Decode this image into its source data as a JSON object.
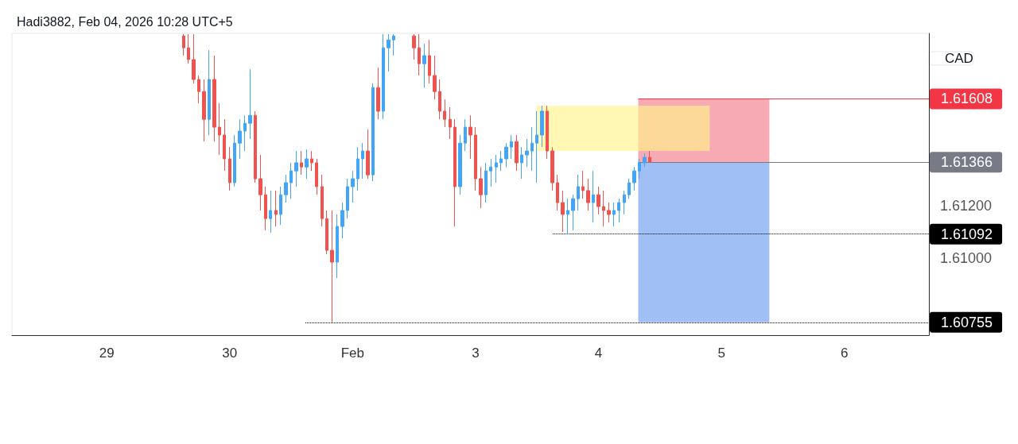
{
  "chart_data": {
    "type": "candlestick",
    "title": "Hadi3882, Feb 04, 2026 10:28 UTC+5",
    "ylabel": "CAD",
    "categories": [
      null,
      null,
      null,
      null,
      null,
      null,
      null,
      null,
      null,
      null,
      null,
      null,
      null,
      null,
      null,
      null,
      null,
      null,
      "29",
      null,
      null,
      null,
      null,
      null,
      null,
      null,
      null,
      null,
      null,
      null,
      null,
      null,
      null,
      null,
      null,
      null,
      null,
      null,
      null,
      null,
      null,
      null,
      "30",
      null,
      null,
      null,
      null,
      null,
      null,
      null,
      null,
      null,
      null,
      null,
      null,
      null,
      null,
      null,
      null,
      null,
      null,
      null,
      null,
      null,
      null,
      null,
      "Feb",
      null,
      null,
      null,
      null,
      null,
      null,
      null,
      null,
      null,
      null,
      null,
      null,
      null,
      null,
      null,
      null,
      null,
      null,
      null,
      null,
      null,
      null,
      null,
      "3",
      null,
      null,
      null,
      null,
      null,
      null,
      null,
      null,
      null,
      null,
      null,
      null,
      null,
      null,
      null,
      null,
      null,
      null,
      null,
      null,
      null,
      null,
      null,
      "4",
      null,
      null,
      null,
      null,
      null,
      null,
      null,
      null,
      null,
      null,
      null,
      null,
      null,
      null,
      null,
      null,
      null,
      null,
      null,
      null,
      null,
      null,
      null,
      "5",
      null,
      null,
      null,
      null,
      null,
      null,
      null,
      null,
      null,
      null,
      null,
      null,
      null,
      null,
      null,
      null,
      null,
      null,
      null,
      null,
      null,
      null,
      null,
      "6",
      null,
      null,
      null,
      null,
      null,
      null,
      null,
      null,
      null,
      null,
      null,
      null,
      null,
      null,
      null,
      null
    ],
    "ohlc": [
      null,
      null,
      null,
      null,
      null,
      null,
      null,
      null,
      null,
      null,
      null,
      null,
      null,
      null,
      null,
      null,
      null,
      null,
      null,
      null,
      null,
      null,
      null,
      null,
      null,
      null,
      null,
      null,
      null,
      null,
      null,
      null,
      null,
      [
        1.61848,
        1.61855,
        1.61773,
        1.61803
      ],
      [
        1.61803,
        1.61855,
        1.61742,
        1.61758
      ],
      [
        1.61758,
        1.61855,
        1.61667,
        1.61682
      ],
      [
        1.61682,
        1.61697,
        1.61591,
        1.61636
      ],
      [
        1.61636,
        1.61682,
        1.61445,
        1.6153
      ],
      [
        1.6153,
        1.61794,
        1.6147,
        1.61682
      ],
      [
        1.61682,
        1.61773,
        1.61445,
        1.615
      ],
      [
        1.615,
        1.61591,
        1.61394,
        1.6147
      ],
      [
        1.6147,
        1.6153,
        1.61333,
        1.61379
      ],
      [
        1.61379,
        1.61424,
        1.61258,
        1.61288
      ],
      [
        1.61288,
        1.6147,
        1.61273,
        1.61439
      ],
      [
        1.61439,
        1.6153,
        1.61379,
        1.61485
      ],
      [
        1.61485,
        1.61545,
        1.61409,
        1.61515
      ],
      [
        1.61515,
        1.61721,
        1.61455,
        1.61545
      ],
      [
        1.61545,
        1.61561,
        1.61288,
        1.61303
      ],
      [
        1.61303,
        1.61394,
        1.61182,
        1.61242
      ],
      [
        1.61242,
        1.61273,
        1.61106,
        1.61151
      ],
      [
        1.61151,
        1.61258,
        1.61097,
        1.61182
      ],
      [
        1.61182,
        1.61258,
        1.61121,
        1.61167
      ],
      [
        1.61167,
        1.61273,
        1.61127,
        1.61242
      ],
      [
        1.61242,
        1.61318,
        1.61212,
        1.61288
      ],
      [
        1.61288,
        1.61364,
        1.61227,
        1.61333
      ],
      [
        1.61333,
        1.61409,
        1.61273,
        1.61364
      ],
      [
        1.61364,
        1.61409,
        1.61318,
        1.61348
      ],
      [
        1.61348,
        1.61415,
        1.61303,
        1.61379
      ],
      [
        1.61379,
        1.61409,
        1.61333,
        1.61364
      ],
      [
        1.61364,
        1.61379,
        1.61242,
        1.61273
      ],
      [
        1.61273,
        1.61318,
        1.61121,
        1.61151
      ],
      [
        1.61151,
        1.61182,
        1.61015,
        1.6103
      ],
      [
        1.6103,
        1.61182,
        1.60755,
        1.60985
      ],
      [
        1.60985,
        1.61167,
        1.60924,
        1.61121
      ],
      [
        1.61121,
        1.61212,
        1.61076,
        1.61182
      ],
      [
        1.61182,
        1.61303,
        1.61151,
        1.61273
      ],
      [
        1.61273,
        1.61333,
        1.61212,
        1.61303
      ],
      [
        1.61303,
        1.61424,
        1.61258,
        1.61379
      ],
      [
        1.61379,
        1.61439,
        1.61303,
        1.61409
      ],
      [
        1.61409,
        1.61491,
        1.61303,
        1.61318
      ],
      [
        1.61318,
        1.61667,
        1.61294,
        1.61651
      ],
      [
        1.61651,
        1.61727,
        1.6153,
        1.61561
      ],
      [
        1.61561,
        1.61855,
        1.6153,
        1.61803
      ],
      [
        1.61803,
        1.61855,
        1.61712,
        1.61833
      ],
      [
        1.61833,
        1.61855,
        1.61773,
        1.61848
      ],
      null,
      null,
      null,
      [
        1.61848,
        1.61855,
        1.61758,
        1.61803
      ],
      [
        1.61803,
        1.61855,
        1.61697,
        1.61742
      ],
      [
        1.61742,
        1.61818,
        1.61651,
        1.61773
      ],
      [
        1.61773,
        1.61833,
        1.61667,
        1.61697
      ],
      [
        1.61697,
        1.61773,
        1.61606,
        1.61636
      ],
      [
        1.61636,
        1.61682,
        1.6153,
        1.61561
      ],
      [
        1.61561,
        1.61606,
        1.615,
        1.6153
      ],
      [
        1.6153,
        1.61576,
        1.61455,
        1.615
      ],
      [
        1.615,
        1.6153,
        1.61121,
        1.61273
      ],
      [
        1.61273,
        1.6147,
        1.61242,
        1.61439
      ],
      [
        1.61439,
        1.6153,
        1.61409,
        1.615
      ],
      [
        1.615,
        1.61545,
        1.61379,
        1.6147
      ],
      [
        1.6147,
        1.615,
        1.61258,
        1.61303
      ],
      [
        1.61303,
        1.61348,
        1.61191,
        1.61242
      ],
      [
        1.61242,
        1.61364,
        1.61212,
        1.61333
      ],
      [
        1.61333,
        1.61379,
        1.61273,
        1.61348
      ],
      [
        1.61348,
        1.61394,
        1.61288,
        1.61364
      ],
      [
        1.61364,
        1.61409,
        1.61333,
        1.61379
      ],
      [
        1.61379,
        1.61439,
        1.61348,
        1.61424
      ],
      [
        1.61424,
        1.6147,
        1.61379,
        1.61445
      ],
      [
        1.61445,
        1.6147,
        1.61333,
        1.61364
      ],
      [
        1.61364,
        1.61424,
        1.61303,
        1.61394
      ],
      [
        1.61394,
        1.61455,
        1.61348,
        1.61409
      ],
      [
        1.61409,
        1.615,
        1.61333,
        1.61439
      ],
      [
        1.61439,
        1.61561,
        1.61288,
        1.6147
      ],
      [
        1.6147,
        1.61582,
        1.61424,
        1.61561
      ],
      [
        1.61561,
        1.61582,
        1.61379,
        1.61409
      ],
      [
        1.61409,
        1.61424,
        1.61258,
        1.61288
      ],
      [
        1.61288,
        1.61318,
        1.61182,
        1.61212
      ],
      [
        1.61212,
        1.61258,
        1.611,
        1.61167
      ],
      [
        1.61167,
        1.61227,
        1.61092,
        1.61182
      ],
      [
        1.61182,
        1.61242,
        1.61106,
        1.61227
      ],
      [
        1.61227,
        1.61318,
        1.61182,
        1.61273
      ],
      [
        1.61273,
        1.61333,
        1.61227,
        1.61258
      ],
      [
        1.61258,
        1.61303,
        1.61182,
        1.61212
      ],
      [
        1.61212,
        1.61333,
        1.61136,
        1.61242
      ],
      [
        1.61242,
        1.61273,
        1.61167,
        1.61197
      ],
      [
        1.61197,
        1.61258,
        1.61121,
        1.61182
      ],
      [
        1.61182,
        1.61212,
        1.61136,
        1.61167
      ],
      [
        1.61167,
        1.61212,
        1.61121,
        1.61182
      ],
      [
        1.61182,
        1.61227,
        1.61136,
        1.61212
      ],
      [
        1.61212,
        1.61258,
        1.61167,
        1.61242
      ],
      [
        1.61242,
        1.61303,
        1.61227,
        1.61288
      ],
      [
        1.61288,
        1.61348,
        1.61258,
        1.61333
      ],
      [
        1.61333,
        1.61379,
        1.61303,
        1.61364
      ],
      [
        1.61364,
        1.614,
        1.61348,
        1.61385
      ],
      [
        1.61385,
        1.61409,
        1.61364,
        1.61366
      ],
      null,
      null,
      null,
      null,
      null,
      null,
      null,
      null,
      null,
      null,
      null,
      null,
      null,
      null,
      null,
      null,
      null,
      null,
      null,
      null,
      null,
      null,
      null,
      null,
      null,
      null,
      null,
      null,
      null,
      null,
      null,
      null,
      null,
      null,
      null,
      null,
      null,
      null,
      null,
      null,
      null,
      null,
      null,
      null,
      null,
      null,
      null,
      null,
      null,
      null,
      null,
      null,
      null,
      null
    ],
    "colors": [
      null,
      null,
      null,
      null,
      null,
      null,
      null,
      null,
      null,
      null,
      null,
      null,
      null,
      null,
      null,
      null,
      null,
      null,
      null,
      null,
      null,
      null,
      null,
      null,
      null,
      null,
      null,
      null,
      null,
      null,
      null,
      null,
      null,
      "#ef5350",
      "#ef5350",
      "#ef5350",
      "#ef5350",
      "#ef5350",
      "#42a5f5",
      "#ef5350",
      "#ef5350",
      "#ef5350",
      "#ef5350",
      "#42a5f5",
      "#42a5f5",
      "#42a5f5",
      "#42a5f5",
      "#ef5350",
      "#ef5350",
      "#ef5350",
      "#42a5f5",
      "#ef5350",
      "#42a5f5",
      "#42a5f5",
      "#42a5f5",
      "#42a5f5",
      "#ef5350",
      "#42a5f5",
      "#ef5350",
      "#ef5350",
      "#ef5350",
      "#ef5350",
      "#ef5350",
      "#42a5f5",
      "#42a5f5",
      "#42a5f5",
      "#42a5f5",
      "#42a5f5",
      "#42a5f5",
      "#ef5350",
      "#42a5f5",
      "#ef5350",
      "#42a5f5",
      "#42a5f5",
      "#42a5f5",
      null,
      null,
      null,
      "#ef5350",
      "#ef5350",
      "#42a5f5",
      "#ef5350",
      "#ef5350",
      "#ef5350",
      "#ef5350",
      "#ef5350",
      "#ef5350",
      "#42a5f5",
      "#42a5f5",
      "#ef5350",
      "#ef5350",
      "#ef5350",
      "#42a5f5",
      "#42a5f5",
      "#42a5f5",
      "#42a5f5",
      "#42a5f5",
      "#42a5f5",
      "#ef5350",
      "#42a5f5",
      "#42a5f5",
      "#42a5f5",
      "#42a5f5",
      "#42a5f5",
      "#ef5350",
      "#ef5350",
      "#ef5350",
      "#ef5350",
      "#42a5f5",
      "#42a5f5",
      "#42a5f5",
      "#ef5350",
      "#ef5350",
      "#42a5f5",
      "#ef5350",
      "#ef5350",
      "#ef5350",
      "#42a5f5",
      "#42a5f5",
      "#42a5f5",
      "#42a5f5",
      "#42a5f5",
      "#42a5f5",
      "#42a5f5",
      "#ef5350",
      null,
      null,
      null,
      null,
      null,
      null,
      null,
      null,
      null,
      null,
      null,
      null,
      null,
      null,
      null,
      null,
      null,
      null,
      null,
      null,
      null,
      null,
      null,
      null,
      null,
      null,
      null,
      null,
      null,
      null,
      null,
      null,
      null,
      null,
      null,
      null,
      null,
      null,
      null,
      null,
      null,
      null,
      null,
      null,
      null,
      null,
      null,
      null,
      null,
      null,
      null,
      null,
      null,
      null
    ],
    "ylim": [
      1.60706,
      1.61858
    ],
    "yticks": [
      {
        "value": 1.61,
        "label": "1.61000"
      },
      {
        "value": 1.612,
        "label": "1.61200"
      }
    ],
    "bands": [
      {
        "axis": "y",
        "from": 1.61366,
        "to": 1.61608,
        "color": "#f7aab3"
      },
      {
        "axis": "y",
        "from": 1.60755,
        "to": 1.61366,
        "color": "#a0bff5"
      },
      {
        "axis": "y",
        "from": 1.61409,
        "to": 1.61582,
        "color": "#fff38a"
      }
    ],
    "ref_lines": [
      {
        "axis": "y",
        "value": 1.61608,
        "label": "1.61608",
        "color": "#f23645",
        "line_style": "solid"
      },
      {
        "axis": "y",
        "value": 1.61366,
        "label": "1.61366",
        "color": "#787b86",
        "line_style": "solid"
      },
      {
        "axis": "y",
        "value": 1.61092,
        "label": "1.61092",
        "color": "#000000",
        "line_style": "dotted"
      },
      {
        "axis": "y",
        "value": 1.60755,
        "label": "1.60755",
        "color": "#000000",
        "line_style": "dotted"
      }
    ]
  }
}
